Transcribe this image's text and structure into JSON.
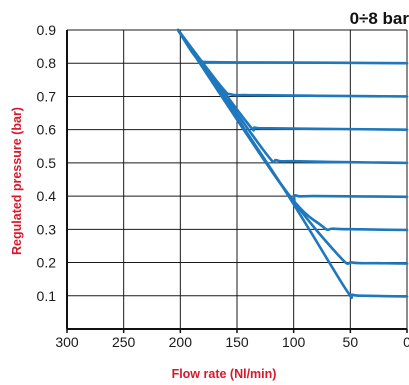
{
  "chart_data": {
    "type": "line",
    "title": "0÷8 bar",
    "xlabel": "Flow rate (Nl/min)",
    "ylabel": "Regulated pressure (bar)",
    "x_reversed": true,
    "xlim": [
      0,
      300
    ],
    "ylim": [
      0,
      0.9
    ],
    "x_ticks": [
      300,
      250,
      200,
      150,
      100,
      50,
      0
    ],
    "y_ticks": [
      0.1,
      0.2,
      0.3,
      0.4,
      0.5,
      0.6,
      0.7,
      0.8,
      0.9
    ],
    "grid": true,
    "series": [
      {
        "points": [
          [
            202,
            0.9
          ],
          [
            189,
            0.83
          ],
          [
            182,
            0.808
          ],
          [
            170,
            0.803
          ],
          [
            100,
            0.802
          ],
          [
            0,
            0.8
          ]
        ]
      },
      {
        "points": [
          [
            202,
            0.9
          ],
          [
            164,
            0.73
          ],
          [
            155,
            0.706
          ],
          [
            140,
            0.704
          ],
          [
            80,
            0.702
          ],
          [
            0,
            0.7
          ]
        ]
      },
      {
        "points": [
          [
            202,
            0.9
          ],
          [
            142,
            0.625
          ],
          [
            134,
            0.606
          ],
          [
            120,
            0.604
          ],
          [
            60,
            0.602
          ],
          [
            0,
            0.6
          ]
        ]
      },
      {
        "points": [
          [
            202,
            0.9
          ],
          [
            127,
            0.54
          ],
          [
            115,
            0.508
          ],
          [
            100,
            0.505
          ],
          [
            50,
            0.502
          ],
          [
            0,
            0.5
          ]
        ]
      },
      {
        "points": [
          [
            202,
            0.9
          ],
          [
            110,
            0.43
          ],
          [
            98,
            0.402
          ],
          [
            80,
            0.4
          ],
          [
            0,
            0.398
          ]
        ]
      },
      {
        "points": [
          [
            202,
            0.9
          ],
          [
            110,
            0.43
          ],
          [
            75,
            0.31
          ],
          [
            65,
            0.302
          ],
          [
            40,
            0.3
          ],
          [
            0,
            0.298
          ]
        ]
      },
      {
        "points": [
          [
            202,
            0.9
          ],
          [
            112,
            0.44
          ],
          [
            60,
            0.22
          ],
          [
            48,
            0.2
          ],
          [
            25,
            0.198
          ],
          [
            0,
            0.197
          ]
        ]
      },
      {
        "points": [
          [
            202,
            0.9
          ],
          [
            112,
            0.44
          ],
          [
            55,
            0.125
          ],
          [
            48,
            0.103
          ],
          [
            35,
            0.1
          ],
          [
            0,
            0.098
          ]
        ]
      }
    ],
    "colors": {
      "series": "#1f78bd",
      "axis_label": "#d7192b",
      "grid": "#1a1a1a"
    }
  }
}
